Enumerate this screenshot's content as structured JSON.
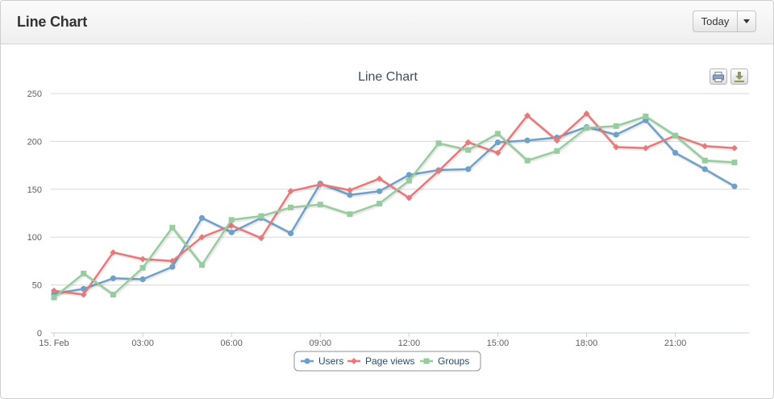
{
  "header": {
    "title": "Line Chart",
    "range_button_label": "Today"
  },
  "export": {
    "print_icon": "printer-icon",
    "download_icon": "download-icon"
  },
  "chart_data": {
    "type": "line",
    "title": "Line Chart",
    "xlabel": "",
    "ylabel": "",
    "ylim": [
      0,
      250
    ],
    "yticks": [
      0,
      50,
      100,
      150,
      200,
      250
    ],
    "x_tick_labels": [
      "15. Feb",
      "03:00",
      "06:00",
      "09:00",
      "12:00",
      "15:00",
      "18:00",
      "21:00"
    ],
    "x_tick_hours": [
      0,
      3,
      6,
      9,
      12,
      15,
      18,
      21
    ],
    "x_hours": [
      0,
      1,
      2,
      3,
      4,
      5,
      6,
      7,
      8,
      9,
      10,
      11,
      12,
      13,
      14,
      15,
      16,
      17,
      18,
      19,
      20,
      21,
      22,
      23
    ],
    "grid": true,
    "legend_position": "bottom-center",
    "series": [
      {
        "name": "Users",
        "color": "#6fa1c8",
        "marker": "circle",
        "values": [
          41,
          46,
          57,
          56,
          69,
          120,
          105,
          120,
          104,
          156,
          144,
          148,
          165,
          170,
          171,
          199,
          201,
          204,
          215,
          207,
          222,
          188,
          171,
          153
        ]
      },
      {
        "name": "Page views",
        "color": "#e8797a",
        "marker": "diamond",
        "values": [
          44,
          40,
          84,
          77,
          75,
          100,
          112,
          99,
          148,
          155,
          149,
          161,
          141,
          169,
          199,
          188,
          227,
          201,
          229,
          194,
          193,
          206,
          195,
          193
        ]
      },
      {
        "name": "Groups",
        "color": "#97cc9e",
        "marker": "square",
        "values": [
          37,
          62,
          40,
          68,
          110,
          71,
          118,
          122,
          131,
          134,
          124,
          135,
          159,
          198,
          191,
          208,
          180,
          190,
          214,
          216,
          226,
          206,
          180,
          178
        ]
      }
    ]
  }
}
